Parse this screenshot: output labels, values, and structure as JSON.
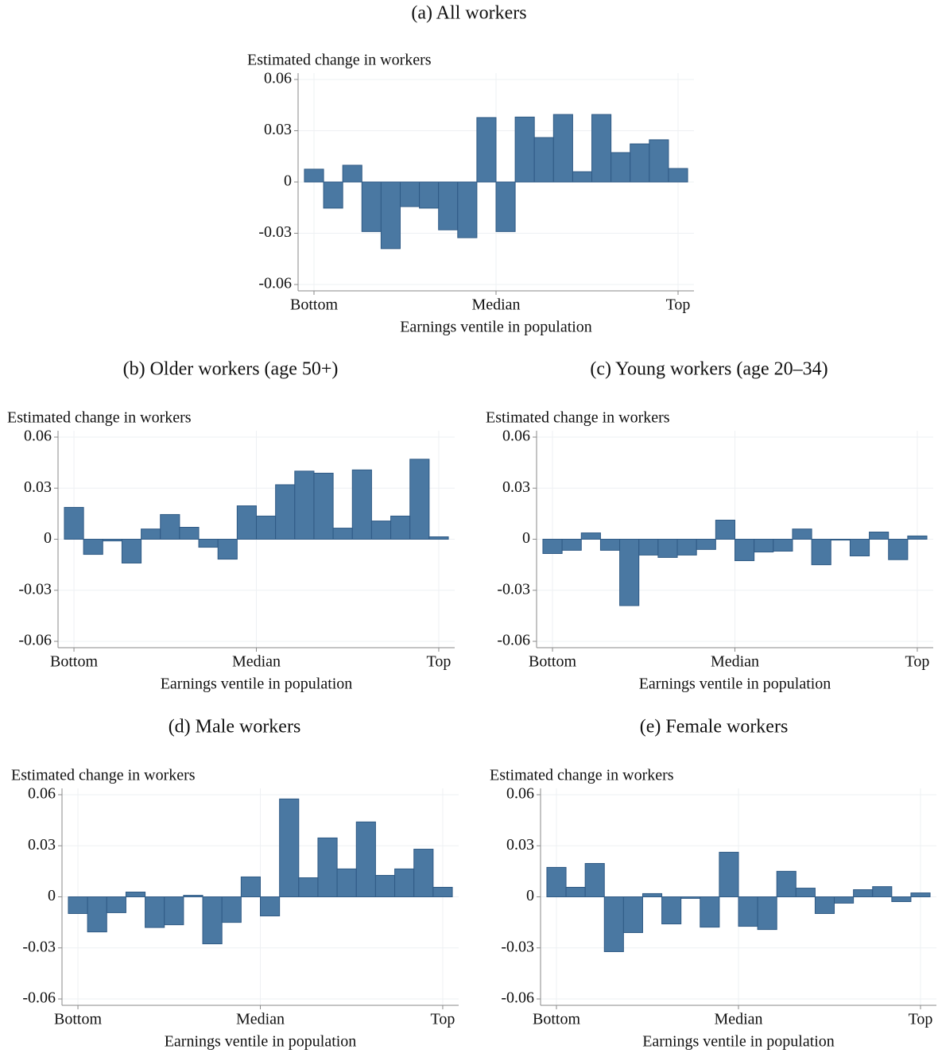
{
  "chart_data": [
    {
      "type": "bar",
      "title": "(a) All workers",
      "ylabel": "Estimated change in workers",
      "xlabel": "Earnings ventile in population",
      "x": [
        1,
        2,
        3,
        4,
        5,
        6,
        7,
        8,
        9,
        10,
        11,
        12,
        13,
        14,
        15,
        16,
        17,
        18,
        19,
        20
      ],
      "values": [
        0.0075,
        -0.0153,
        0.0098,
        -0.029,
        -0.039,
        -0.0144,
        -0.0153,
        -0.028,
        -0.0326,
        0.0377,
        -0.029,
        0.038,
        0.026,
        0.0395,
        0.006,
        0.0395,
        0.0172,
        0.0223,
        0.0247,
        0.0079
      ],
      "color": "#4a78a2",
      "xlim": [
        0.17,
        20.83
      ],
      "ylim": [
        -0.06,
        0.06
      ],
      "xticks": [
        {
          "value": 1,
          "label": "Bottom"
        },
        {
          "value": 10.5,
          "label": "Median"
        },
        {
          "value": 20,
          "label": "Top"
        }
      ],
      "yticks": [
        -0.06,
        -0.03,
        0,
        0.03,
        0.06
      ],
      "grid": true
    },
    {
      "type": "bar",
      "title": "(b) Older workers (age 50+)",
      "ylabel": "Estimated change in workers",
      "xlabel": "Earnings ventile in population",
      "x": [
        1,
        2,
        3,
        4,
        5,
        6,
        7,
        8,
        9,
        10,
        11,
        12,
        13,
        14,
        15,
        16,
        17,
        18,
        19,
        20
      ],
      "values": [
        0.0187,
        -0.0089,
        -0.001,
        -0.014,
        0.006,
        0.0145,
        0.007,
        -0.0047,
        -0.0117,
        0.0196,
        0.0136,
        0.032,
        0.04,
        0.0388,
        0.0065,
        0.0407,
        0.0107,
        0.0136,
        0.047,
        0.0014
      ],
      "color": "#4a78a2",
      "xlim": [
        0.17,
        20.83
      ],
      "ylim": [
        -0.06,
        0.06
      ],
      "xticks": [
        {
          "value": 1,
          "label": "Bottom"
        },
        {
          "value": 10.5,
          "label": "Median"
        },
        {
          "value": 20,
          "label": "Top"
        }
      ],
      "yticks": [
        -0.06,
        -0.03,
        0,
        0.03,
        0.06
      ],
      "grid": true
    },
    {
      "type": "bar",
      "title": "(c) Young workers (age 20–34)",
      "ylabel": "Estimated change in workers",
      "xlabel": "Earnings ventile in population",
      "x": [
        1,
        2,
        3,
        4,
        5,
        6,
        7,
        8,
        9,
        10,
        11,
        12,
        13,
        14,
        15,
        16,
        17,
        18,
        19,
        20
      ],
      "values": [
        -0.0084,
        -0.0065,
        0.0037,
        -0.0065,
        -0.039,
        -0.0093,
        -0.0107,
        -0.0093,
        -0.006,
        0.0112,
        -0.0126,
        -0.0075,
        -0.007,
        0.006,
        -0.015,
        -0.0005,
        -0.0098,
        0.0042,
        -0.012,
        0.0019
      ],
      "color": "#4a78a2",
      "xlim": [
        0.17,
        20.83
      ],
      "ylim": [
        -0.06,
        0.06
      ],
      "xticks": [
        {
          "value": 1,
          "label": "Bottom"
        },
        {
          "value": 10.5,
          "label": "Median"
        },
        {
          "value": 20,
          "label": "Top"
        }
      ],
      "yticks": [
        -0.06,
        -0.03,
        0,
        0.03,
        0.06
      ],
      "grid": true
    },
    {
      "type": "bar",
      "title": "(d) Male workers",
      "ylabel": "Estimated change in workers",
      "xlabel": "Earnings ventile in population",
      "x": [
        1,
        2,
        3,
        4,
        5,
        6,
        7,
        8,
        9,
        10,
        11,
        12,
        13,
        14,
        15,
        16,
        17,
        18,
        19,
        20
      ],
      "values": [
        -0.0098,
        -0.0206,
        -0.0093,
        0.0028,
        -0.018,
        -0.0164,
        0.0009,
        -0.0276,
        -0.015,
        0.0117,
        -0.0112,
        0.0575,
        0.0112,
        0.0346,
        0.0164,
        0.044,
        0.0126,
        0.0164,
        0.028,
        0.0056
      ],
      "color": "#4a78a2",
      "xlim": [
        0.17,
        20.83
      ],
      "ylim": [
        -0.06,
        0.06
      ],
      "xticks": [
        {
          "value": 1,
          "label": "Bottom"
        },
        {
          "value": 10.5,
          "label": "Median"
        },
        {
          "value": 20,
          "label": "Top"
        }
      ],
      "yticks": [
        -0.06,
        -0.03,
        0,
        0.03,
        0.06
      ],
      "grid": true
    },
    {
      "type": "bar",
      "title": "(e) Female workers",
      "ylabel": "Estimated change in workers",
      "xlabel": "Earnings ventile in population",
      "x": [
        1,
        2,
        3,
        4,
        5,
        6,
        7,
        8,
        9,
        10,
        11,
        12,
        13,
        14,
        15,
        16,
        17,
        18,
        19,
        20
      ],
      "values": [
        0.0173,
        0.0056,
        0.0196,
        -0.0322,
        -0.021,
        0.0019,
        -0.0159,
        -0.0009,
        -0.0178,
        0.0262,
        -0.0173,
        -0.0192,
        0.015,
        0.0051,
        -0.0098,
        -0.0037,
        0.0042,
        0.006,
        -0.0028,
        0.0023
      ],
      "color": "#4a78a2",
      "xlim": [
        0.17,
        20.83
      ],
      "ylim": [
        -0.06,
        0.06
      ],
      "xticks": [
        {
          "value": 1,
          "label": "Bottom"
        },
        {
          "value": 10.5,
          "label": "Median"
        },
        {
          "value": 20,
          "label": "Top"
        }
      ],
      "yticks": [
        -0.06,
        -0.03,
        0,
        0.03,
        0.06
      ],
      "grid": true
    }
  ]
}
